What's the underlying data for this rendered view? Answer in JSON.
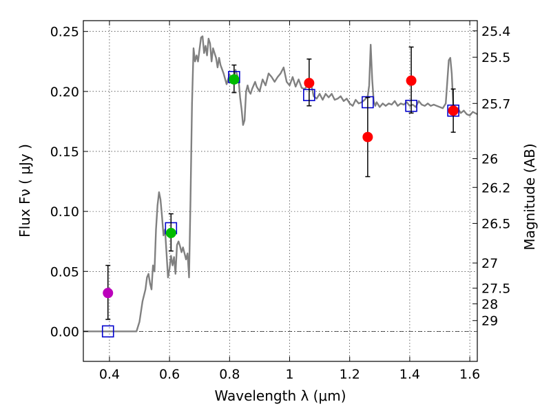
{
  "chart_data": {
    "type": "scatter",
    "title": "",
    "xlabel": "Wavelength  λ (μm)",
    "ylabel": "Flux  Fν  ( μJy )",
    "ylabel_right": "Magnitude (AB)",
    "xlim": [
      0.313,
      1.625
    ],
    "ylim": [
      -0.025,
      0.259
    ],
    "x_ticks": [
      0.4,
      0.6,
      0.8,
      1.0,
      1.2,
      1.4,
      1.6
    ],
    "x_tick_labels": [
      "0.4",
      "0.6",
      "0.8",
      "1",
      "1.2",
      "1.4",
      "1.6"
    ],
    "y_ticks": [
      0.0,
      0.05,
      0.1,
      0.15,
      0.2,
      0.25
    ],
    "y_tick_labels": [
      "0.00",
      "0.05",
      "0.10",
      "0.15",
      "0.20",
      "0.25"
    ],
    "right_ticks": [
      {
        "flux": 0.2505,
        "label": "25.4"
      },
      {
        "flux": 0.2285,
        "label": "25.5"
      },
      {
        "flux": 0.19,
        "label": "25.7"
      },
      {
        "flux": 0.144,
        "label": "26"
      },
      {
        "flux": 0.12,
        "label": "26.2"
      },
      {
        "flux": 0.09,
        "label": "26.5"
      },
      {
        "flux": 0.057,
        "label": "27"
      },
      {
        "flux": 0.036,
        "label": "27.5"
      },
      {
        "flux": 0.023,
        "label": "28"
      },
      {
        "flux": 0.009,
        "label": "29"
      }
    ],
    "grid": true,
    "zero_line": true,
    "series": [
      {
        "name": "model_sed",
        "kind": "line",
        "color": "#808080",
        "x": [
          0.313,
          0.4,
          0.47,
          0.49,
          0.5,
          0.51,
          0.52,
          0.525,
          0.53,
          0.535,
          0.54,
          0.545,
          0.55,
          0.555,
          0.56,
          0.565,
          0.57,
          0.575,
          0.58,
          0.585,
          0.59,
          0.595,
          0.6,
          0.605,
          0.61,
          0.615,
          0.62,
          0.625,
          0.63,
          0.635,
          0.64,
          0.645,
          0.65,
          0.655,
          0.66,
          0.665,
          0.67,
          0.675,
          0.68,
          0.685,
          0.69,
          0.695,
          0.7,
          0.705,
          0.71,
          0.715,
          0.72,
          0.725,
          0.73,
          0.735,
          0.74,
          0.745,
          0.75,
          0.755,
          0.76,
          0.765,
          0.77,
          0.78,
          0.79,
          0.8,
          0.81,
          0.82,
          0.83,
          0.835,
          0.84,
          0.845,
          0.85,
          0.855,
          0.86,
          0.865,
          0.87,
          0.875,
          0.88,
          0.885,
          0.89,
          0.9,
          0.91,
          0.92,
          0.93,
          0.94,
          0.95,
          0.96,
          0.97,
          0.98,
          0.99,
          1.0,
          1.01,
          1.02,
          1.03,
          1.04,
          1.05,
          1.06,
          1.07,
          1.08,
          1.09,
          1.1,
          1.11,
          1.12,
          1.13,
          1.14,
          1.15,
          1.16,
          1.17,
          1.18,
          1.19,
          1.2,
          1.21,
          1.22,
          1.23,
          1.24,
          1.25,
          1.26,
          1.265,
          1.27,
          1.275,
          1.28,
          1.285,
          1.29,
          1.3,
          1.31,
          1.32,
          1.33,
          1.34,
          1.35,
          1.36,
          1.37,
          1.38,
          1.39,
          1.4,
          1.41,
          1.42,
          1.43,
          1.44,
          1.45,
          1.46,
          1.47,
          1.48,
          1.49,
          1.5,
          1.51,
          1.52,
          1.525,
          1.53,
          1.535,
          1.54,
          1.545,
          1.55,
          1.56,
          1.57,
          1.58,
          1.59,
          1.6,
          1.61,
          1.625
        ],
        "y": [
          0.0,
          0.0,
          0.0,
          0.0,
          0.008,
          0.025,
          0.035,
          0.045,
          0.048,
          0.04,
          0.035,
          0.055,
          0.05,
          0.085,
          0.105,
          0.116,
          0.11,
          0.096,
          0.08,
          0.085,
          0.065,
          0.045,
          0.052,
          0.063,
          0.055,
          0.062,
          0.048,
          0.072,
          0.075,
          0.071,
          0.066,
          0.07,
          0.065,
          0.06,
          0.065,
          0.045,
          0.11,
          0.19,
          0.236,
          0.225,
          0.23,
          0.225,
          0.235,
          0.245,
          0.246,
          0.232,
          0.238,
          0.23,
          0.244,
          0.24,
          0.225,
          0.236,
          0.232,
          0.228,
          0.22,
          0.228,
          0.222,
          0.215,
          0.206,
          0.214,
          0.208,
          0.218,
          0.21,
          0.195,
          0.185,
          0.172,
          0.176,
          0.2,
          0.205,
          0.2,
          0.198,
          0.202,
          0.205,
          0.208,
          0.204,
          0.2,
          0.21,
          0.205,
          0.215,
          0.212,
          0.208,
          0.212,
          0.215,
          0.22,
          0.208,
          0.205,
          0.212,
          0.204,
          0.21,
          0.203,
          0.202,
          0.205,
          0.208,
          0.196,
          0.194,
          0.198,
          0.193,
          0.198,
          0.195,
          0.198,
          0.193,
          0.194,
          0.196,
          0.192,
          0.194,
          0.19,
          0.188,
          0.193,
          0.19,
          0.191,
          0.193,
          0.196,
          0.205,
          0.239,
          0.21,
          0.192,
          0.188,
          0.191,
          0.187,
          0.19,
          0.188,
          0.19,
          0.189,
          0.192,
          0.188,
          0.19,
          0.189,
          0.191,
          0.188,
          0.189,
          0.187,
          0.192,
          0.189,
          0.188,
          0.19,
          0.188,
          0.189,
          0.188,
          0.187,
          0.186,
          0.19,
          0.208,
          0.226,
          0.228,
          0.215,
          0.188,
          0.183,
          0.186,
          0.182,
          0.184,
          0.181,
          0.18,
          0.183,
          0.181
        ]
      },
      {
        "name": "model_photometry",
        "kind": "open_square",
        "color": "#0000cc",
        "x": [
          0.395,
          0.605,
          0.815,
          1.065,
          1.26,
          1.405,
          1.545
        ],
        "y": [
          0.0,
          0.086,
          0.212,
          0.197,
          0.191,
          0.188,
          0.184
        ]
      },
      {
        "name": "observed_violet",
        "kind": "point",
        "color": "#bb00bb",
        "x": [
          0.395
        ],
        "y": [
          0.032
        ],
        "yerr_low": [
          0.01
        ],
        "yerr_high": [
          0.055
        ]
      },
      {
        "name": "observed_green",
        "kind": "point",
        "color": "#00bb00",
        "x": [
          0.605,
          0.815
        ],
        "y": [
          0.082,
          0.21
        ],
        "yerr_low": [
          0.067,
          0.199
        ],
        "yerr_high": [
          0.098,
          0.222
        ]
      },
      {
        "name": "observed_red",
        "kind": "point",
        "color": "#ff0000",
        "x": [
          1.065,
          1.26,
          1.405,
          1.545
        ],
        "y": [
          0.207,
          0.162,
          0.209,
          0.184
        ],
        "yerr_low": [
          0.188,
          0.129,
          0.182,
          0.166
        ],
        "yerr_high": [
          0.227,
          0.195,
          0.237,
          0.202
        ]
      }
    ]
  }
}
